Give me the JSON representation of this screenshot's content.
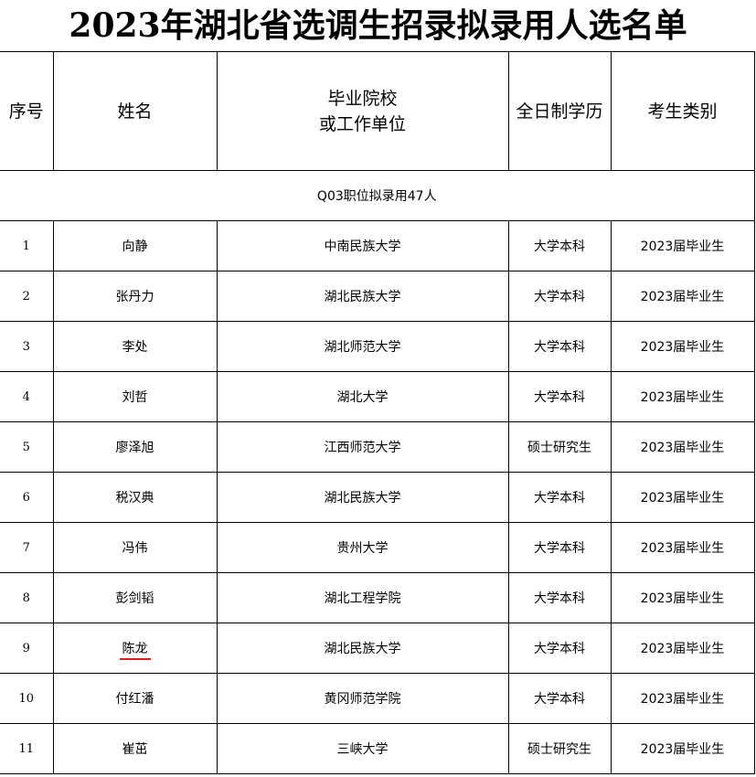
{
  "title": "2023年湖北省选调生招录拟录用人选名单",
  "headers": {
    "seq": "序号",
    "name": "姓名",
    "school_line1": "毕业院校",
    "school_line2": "或工作单位",
    "education": "全日制学历",
    "category": "考生类别"
  },
  "section": "Q03职位拟录用47人",
  "rows": [
    {
      "seq": "1",
      "name": "向静",
      "school": "中南民族大学",
      "education": "大学本科",
      "category": "2023届毕业生"
    },
    {
      "seq": "2",
      "name": "张丹力",
      "school": "湖北民族大学",
      "education": "大学本科",
      "category": "2023届毕业生"
    },
    {
      "seq": "3",
      "name": "李处",
      "school": "湖北师范大学",
      "education": "大学本科",
      "category": "2023届毕业生"
    },
    {
      "seq": "4",
      "name": "刘哲",
      "school": "湖北大学",
      "education": "大学本科",
      "category": "2023届毕业生"
    },
    {
      "seq": "5",
      "name": "廖泽旭",
      "school": "江西师范大学",
      "education": "硕士研究生",
      "category": "2023届毕业生"
    },
    {
      "seq": "6",
      "name": "税汉典",
      "school": "湖北民族大学",
      "education": "大学本科",
      "category": "2023届毕业生"
    },
    {
      "seq": "7",
      "name": "冯伟",
      "school": "贵州大学",
      "education": "大学本科",
      "category": "2023届毕业生"
    },
    {
      "seq": "8",
      "name": "彭剑韬",
      "school": "湖北工程学院",
      "education": "大学本科",
      "category": "2023届毕业生"
    },
    {
      "seq": "9",
      "name": "陈龙",
      "school": "湖北民族大学",
      "education": "大学本科",
      "category": "2023届毕业生"
    },
    {
      "seq": "10",
      "name": "付红潘",
      "school": "黄冈师范学院",
      "education": "大学本科",
      "category": "2023届毕业生"
    },
    {
      "seq": "11",
      "name": "崔茁",
      "school": "三峡大学",
      "education": "硕士研究生",
      "category": "2023届毕业生"
    }
  ],
  "highlight": {
    "row": "9",
    "underline_color": "#e02020"
  }
}
